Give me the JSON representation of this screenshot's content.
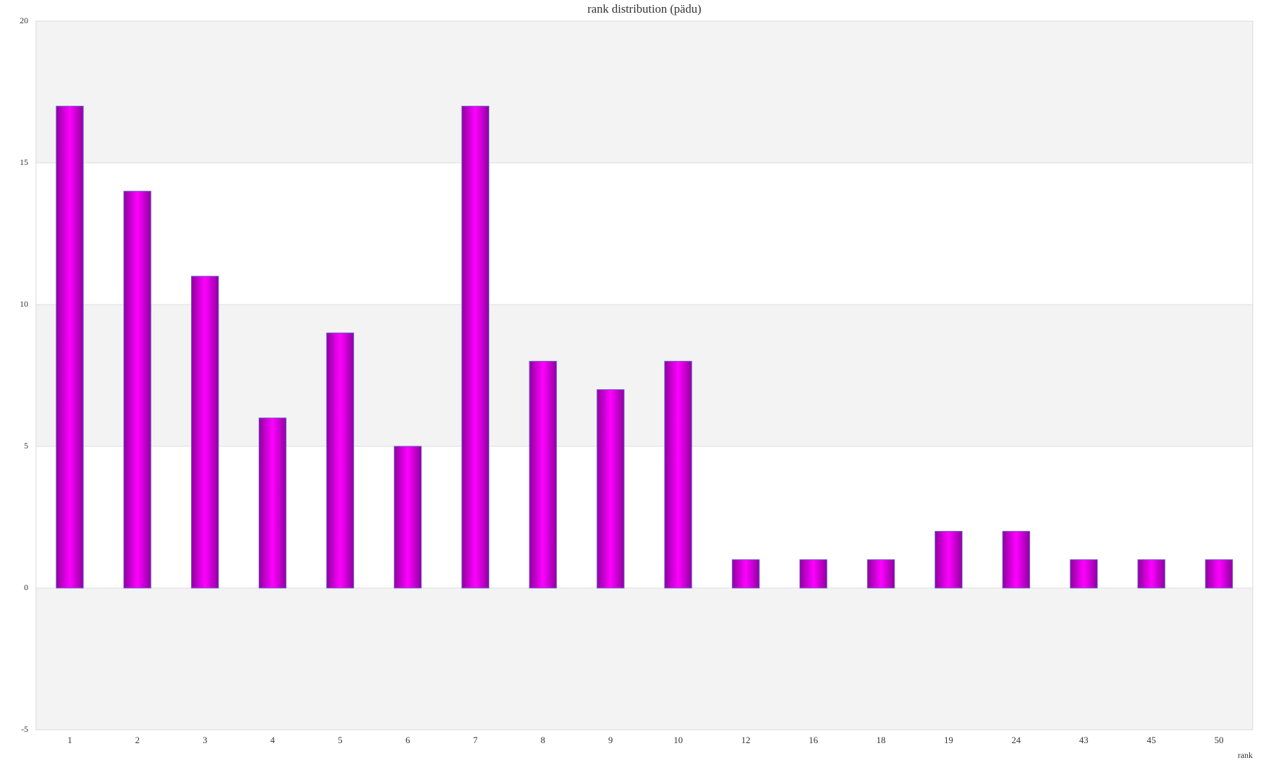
{
  "chart_data": {
    "type": "bar",
    "title": "rank distribution (pädu)",
    "x_label": "rank",
    "categories": [
      "1",
      "2",
      "3",
      "4",
      "5",
      "6",
      "7",
      "8",
      "9",
      "10",
      "12",
      "16",
      "18",
      "19",
      "24",
      "43",
      "45",
      "50"
    ],
    "values": [
      17,
      14,
      11,
      6,
      9,
      5,
      17,
      8,
      7,
      8,
      1,
      1,
      1,
      2,
      2,
      1,
      1,
      1
    ],
    "color": "#ff00ff",
    "ylim": [
      -5,
      20
    ],
    "yticks": [
      -5,
      0,
      5,
      10,
      15,
      20
    ],
    "grid": true
  }
}
